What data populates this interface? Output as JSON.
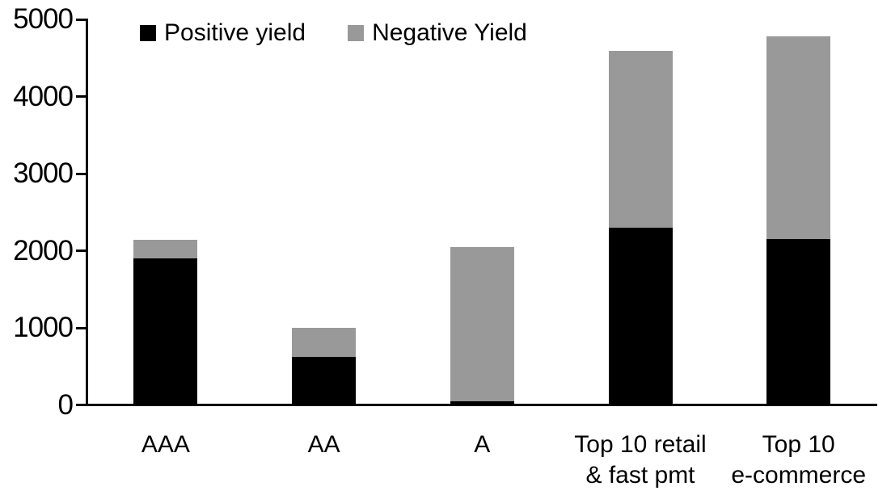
{
  "legend": {
    "items": [
      {
        "label": "Positive yield",
        "color": "#000000"
      },
      {
        "label": "Negative Yield",
        "color": "#999999"
      }
    ]
  },
  "chart_data": {
    "type": "bar",
    "subtype": "stacked",
    "title": "",
    "xlabel": "",
    "ylabel": "",
    "categories": [
      "AAA",
      "AA",
      "A",
      "Top 10 retail\n& fast pmt",
      "Top 10\ne-commerce"
    ],
    "series": [
      {
        "name": "Positive yield",
        "color": "#000000",
        "values": [
          1900,
          620,
          45,
          2300,
          2150
        ]
      },
      {
        "name": "Negative Yield",
        "color": "#999999",
        "values": [
          240,
          385,
          2000,
          2290,
          2630
        ]
      }
    ],
    "stacked_totals": [
      2140,
      1005,
      2045,
      4590,
      4780
    ],
    "yticks": [
      0,
      1000,
      2000,
      3000,
      4000,
      5000
    ],
    "ylim": [
      0,
      5000
    ],
    "grid": false,
    "legend_position": "top"
  }
}
